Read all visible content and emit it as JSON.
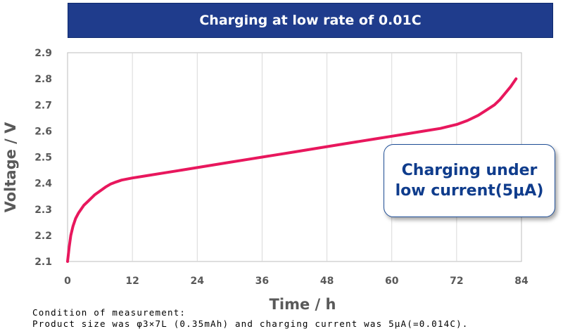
{
  "chart_data": {
    "type": "line",
    "title": "Charging at low rate of 0.01C",
    "xlabel": "Time / h",
    "ylabel": "Voltage / V",
    "xlim": [
      0,
      84
    ],
    "ylim": [
      2.1,
      2.9
    ],
    "x_ticks": [
      "0",
      "12",
      "24",
      "36",
      "48",
      "60",
      "72",
      "84"
    ],
    "y_ticks": [
      "2.1",
      "2.2",
      "2.3",
      "2.4",
      "2.5",
      "2.6",
      "2.7",
      "2.8",
      "2.9"
    ],
    "grid": "vertical",
    "series": [
      {
        "color": "#e8175d",
        "x": [
          0,
          0.3,
          0.6,
          1,
          1.5,
          2,
          3,
          4,
          5,
          6,
          7,
          8,
          9,
          10,
          12,
          15,
          18,
          21,
          24,
          27,
          30,
          33,
          36,
          39,
          42,
          45,
          48,
          51,
          54,
          57,
          60,
          63,
          66,
          69,
          72,
          74,
          76,
          77.5,
          79,
          80,
          81,
          82,
          83
        ],
        "y": [
          2.1,
          2.155,
          2.2,
          2.235,
          2.265,
          2.285,
          2.315,
          2.335,
          2.355,
          2.37,
          2.385,
          2.397,
          2.405,
          2.412,
          2.42,
          2.43,
          2.44,
          2.45,
          2.46,
          2.47,
          2.48,
          2.49,
          2.5,
          2.51,
          2.52,
          2.53,
          2.54,
          2.55,
          2.56,
          2.57,
          2.58,
          2.59,
          2.6,
          2.61,
          2.625,
          2.64,
          2.66,
          2.68,
          2.7,
          2.72,
          2.745,
          2.77,
          2.8
        ]
      }
    ],
    "annotation": "Charging under\nlow current(5μA)"
  },
  "condition": {
    "line1": "Condition of measurement:",
    "line2": "Product size was φ3×7L (0.35mAh) and charging current was 5μA(=0.014C)."
  }
}
